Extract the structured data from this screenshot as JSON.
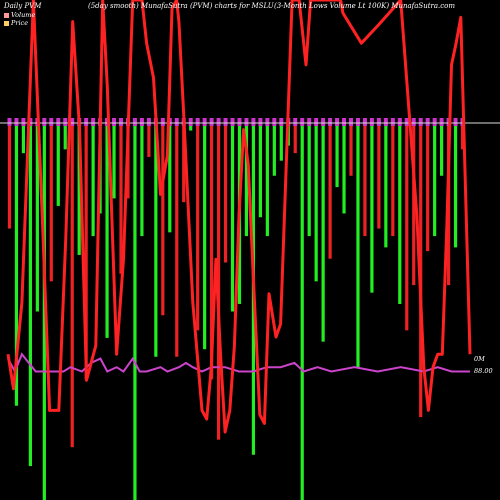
{
  "header": {
    "left": "Daily PVM",
    "center": "(5day smooth) MunafaSutra (PVM) charts for MSLU",
    "right": "(3-Month Lows Volume   Lt 100K) MunafaSutra.com"
  },
  "legend": [
    {
      "label": "Volume",
      "color": "#ff9999"
    },
    {
      "label": "Price",
      "color": "#ffcc66"
    }
  ],
  "right_labels": {
    "volume_axis": "0M",
    "price_axis": "88.00"
  },
  "colors": {
    "up": "#22ee22",
    "down": "#ee2222",
    "marker": "#cc33cc",
    "line": "#ff2222",
    "avg": "#cc44cc",
    "background": "#000000"
  },
  "chart_data": {
    "type": "bar",
    "title": "(5day smooth) MunafaSutra (PVM) charts for MSLU",
    "subtitle": "(3-Month Lows Volume   Lt 100K) MunafaSutra.com",
    "volume_bars": [
      {
        "dir": "down",
        "v": 0.28
      },
      {
        "dir": "up",
        "v": 0.75
      },
      {
        "dir": "up",
        "v": 0.08
      },
      {
        "dir": "up",
        "v": 0.91
      },
      {
        "dir": "up",
        "v": 0.5
      },
      {
        "dir": "up",
        "v": 1.0
      },
      {
        "dir": "down",
        "v": 0.42
      },
      {
        "dir": "up",
        "v": 0.22
      },
      {
        "dir": "up",
        "v": 0.07
      },
      {
        "dir": "down",
        "v": 0.86
      },
      {
        "dir": "up",
        "v": 0.35
      },
      {
        "dir": "down",
        "v": 0.68
      },
      {
        "dir": "up",
        "v": 0.3
      },
      {
        "dir": "up",
        "v": 0.24
      },
      {
        "dir": "up",
        "v": 0.57
      },
      {
        "dir": "up",
        "v": 0.2
      },
      {
        "dir": "down",
        "v": 0.4
      },
      {
        "dir": "down",
        "v": 0.2
      },
      {
        "dir": "up",
        "v": 1.0
      },
      {
        "dir": "up",
        "v": 0.3
      },
      {
        "dir": "down",
        "v": 0.09
      },
      {
        "dir": "up",
        "v": 0.62
      },
      {
        "dir": "down",
        "v": 0.51
      },
      {
        "dir": "up",
        "v": 0.29
      },
      {
        "dir": "down",
        "v": 0.62
      },
      {
        "dir": "down",
        "v": 0.21
      },
      {
        "dir": "up",
        "v": 0.02
      },
      {
        "dir": "down",
        "v": 0.55
      },
      {
        "dir": "up",
        "v": 0.6
      },
      {
        "dir": "down",
        "v": 0.68
      },
      {
        "dir": "down",
        "v": 0.84
      },
      {
        "dir": "down",
        "v": 0.37
      },
      {
        "dir": "up",
        "v": 0.5
      },
      {
        "dir": "up",
        "v": 0.48
      },
      {
        "dir": "up",
        "v": 0.3
      },
      {
        "dir": "up",
        "v": 0.88
      },
      {
        "dir": "up",
        "v": 0.25
      },
      {
        "dir": "up",
        "v": 0.3
      },
      {
        "dir": "up",
        "v": 0.14
      },
      {
        "dir": "up",
        "v": 0.1
      },
      {
        "dir": "up",
        "v": 0.06
      },
      {
        "dir": "down",
        "v": 0.08
      },
      {
        "dir": "up",
        "v": 1.0
      },
      {
        "dir": "up",
        "v": 0.3
      },
      {
        "dir": "up",
        "v": 0.42
      },
      {
        "dir": "up",
        "v": 0.58
      },
      {
        "dir": "down",
        "v": 0.36
      },
      {
        "dir": "up",
        "v": 0.17
      },
      {
        "dir": "up",
        "v": 0.24
      },
      {
        "dir": "down",
        "v": 0.14
      },
      {
        "dir": "up",
        "v": 0.65
      },
      {
        "dir": "down",
        "v": 0.3
      },
      {
        "dir": "up",
        "v": 0.45
      },
      {
        "dir": "down",
        "v": 0.28
      },
      {
        "dir": "up",
        "v": 0.33
      },
      {
        "dir": "down",
        "v": 0.3
      },
      {
        "dir": "up",
        "v": 0.48
      },
      {
        "dir": "down",
        "v": 0.55
      },
      {
        "dir": "down",
        "v": 0.43
      },
      {
        "dir": "down",
        "v": 0.78
      },
      {
        "dir": "down",
        "v": 0.34
      },
      {
        "dir": "up",
        "v": 0.3
      },
      {
        "dir": "up",
        "v": 0.14
      },
      {
        "dir": "down",
        "v": 0.43
      },
      {
        "dir": "up",
        "v": 0.33
      },
      {
        "dir": "down",
        "v": 0.07
      }
    ],
    "price_line": [
      [
        0.0,
        0.82
      ],
      [
        0.012,
        0.9
      ],
      [
        0.03,
        0.7
      ],
      [
        0.055,
        0.0
      ],
      [
        0.075,
        0.52
      ],
      [
        0.09,
        0.95
      ],
      [
        0.11,
        0.95
      ],
      [
        0.125,
        0.55
      ],
      [
        0.14,
        0.05
      ],
      [
        0.155,
        0.3
      ],
      [
        0.17,
        0.88
      ],
      [
        0.19,
        0.8
      ],
      [
        0.205,
        0.0
      ],
      [
        0.215,
        0.2
      ],
      [
        0.235,
        0.82
      ],
      [
        0.25,
        0.6
      ],
      [
        0.27,
        0.0
      ],
      [
        0.29,
        0.0
      ],
      [
        0.3,
        0.1
      ],
      [
        0.315,
        0.18
      ],
      [
        0.33,
        0.45
      ],
      [
        0.345,
        0.36
      ],
      [
        0.355,
        0.02
      ],
      [
        0.365,
        0.0
      ],
      [
        0.37,
        0.05
      ],
      [
        0.38,
        0.26
      ],
      [
        0.39,
        0.48
      ],
      [
        0.4,
        0.7
      ],
      [
        0.42,
        0.95
      ],
      [
        0.43,
        0.97
      ],
      [
        0.44,
        0.85
      ],
      [
        0.45,
        0.6
      ],
      [
        0.46,
        0.82
      ],
      [
        0.47,
        1.0
      ],
      [
        0.48,
        0.95
      ],
      [
        0.49,
        0.8
      ],
      [
        0.5,
        0.5
      ],
      [
        0.51,
        0.3
      ],
      [
        0.52,
        0.38
      ],
      [
        0.53,
        0.62
      ],
      [
        0.545,
        0.96
      ],
      [
        0.555,
        0.98
      ],
      [
        0.565,
        0.68
      ],
      [
        0.58,
        0.78
      ],
      [
        0.59,
        0.75
      ],
      [
        0.6,
        0.45
      ],
      [
        0.615,
        0.0
      ],
      [
        0.63,
        0.0
      ],
      [
        0.645,
        0.15
      ],
      [
        0.655,
        0.0
      ],
      [
        0.66,
        0.0
      ],
      [
        0.72,
        0.0
      ],
      [
        0.725,
        0.03
      ],
      [
        0.765,
        0.1
      ],
      [
        0.8,
        0.06
      ],
      [
        0.85,
        0.0
      ],
      [
        0.885,
        0.5
      ],
      [
        0.9,
        0.85
      ],
      [
        0.91,
        0.95
      ],
      [
        0.92,
        0.85
      ],
      [
        0.93,
        0.82
      ],
      [
        0.94,
        0.82
      ],
      [
        0.95,
        0.52
      ],
      [
        0.96,
        0.15
      ],
      [
        0.97,
        0.1
      ],
      [
        0.98,
        0.04
      ],
      [
        1.0,
        0.82
      ]
    ],
    "average_line": [
      [
        0.0,
        0.83
      ],
      [
        0.015,
        0.86
      ],
      [
        0.03,
        0.82
      ],
      [
        0.06,
        0.86
      ],
      [
        0.1,
        0.86
      ],
      [
        0.12,
        0.86
      ],
      [
        0.135,
        0.85
      ],
      [
        0.16,
        0.86
      ],
      [
        0.18,
        0.84
      ],
      [
        0.2,
        0.83
      ],
      [
        0.215,
        0.86
      ],
      [
        0.235,
        0.85
      ],
      [
        0.25,
        0.86
      ],
      [
        0.27,
        0.83
      ],
      [
        0.285,
        0.86
      ],
      [
        0.3,
        0.86
      ],
      [
        0.33,
        0.85
      ],
      [
        0.345,
        0.86
      ],
      [
        0.37,
        0.85
      ],
      [
        0.385,
        0.84
      ],
      [
        0.4,
        0.85
      ],
      [
        0.42,
        0.86
      ],
      [
        0.44,
        0.85
      ],
      [
        0.47,
        0.85
      ],
      [
        0.5,
        0.86
      ],
      [
        0.53,
        0.86
      ],
      [
        0.56,
        0.85
      ],
      [
        0.59,
        0.85
      ],
      [
        0.62,
        0.84
      ],
      [
        0.64,
        0.86
      ],
      [
        0.67,
        0.85
      ],
      [
        0.7,
        0.86
      ],
      [
        0.75,
        0.85
      ],
      [
        0.8,
        0.86
      ],
      [
        0.85,
        0.85
      ],
      [
        0.9,
        0.86
      ],
      [
        0.93,
        0.85
      ],
      [
        0.96,
        0.86
      ],
      [
        1.0,
        0.86
      ]
    ],
    "marker_colors": [
      "#cc33cc"
    ]
  }
}
